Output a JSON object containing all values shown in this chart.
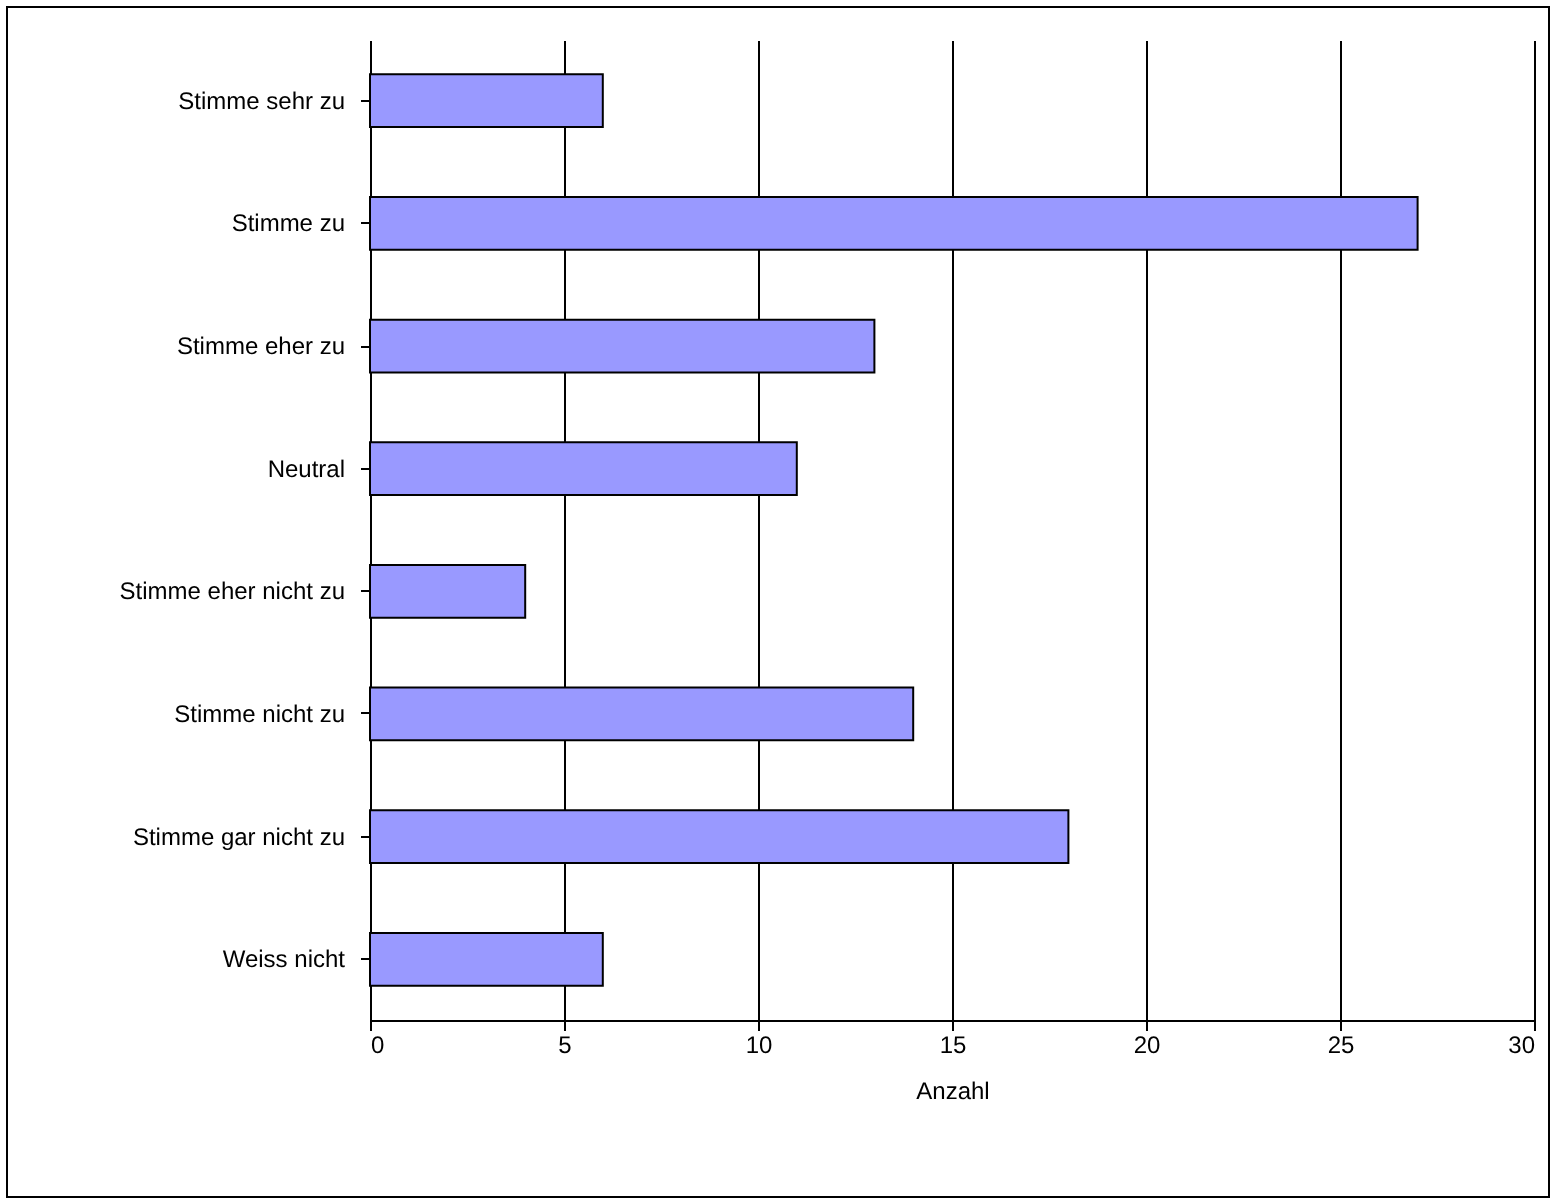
{
  "chart_data": {
    "type": "bar",
    "orientation": "horizontal",
    "xlabel": "Anzahl",
    "categories": [
      "Stimme sehr zu",
      "Stimme zu",
      "Stimme eher zu",
      "Neutral",
      "Stimme eher nicht zu",
      "Stimme nicht zu",
      "Stimme gar nicht zu",
      "Weiss nicht"
    ],
    "values": [
      6,
      27,
      13,
      11,
      4,
      14,
      18,
      6
    ],
    "color": "#9999ff",
    "xlim": [
      0,
      30
    ],
    "xticks": [
      0,
      5,
      10,
      15,
      20,
      25,
      30
    ],
    "grid": "x"
  }
}
